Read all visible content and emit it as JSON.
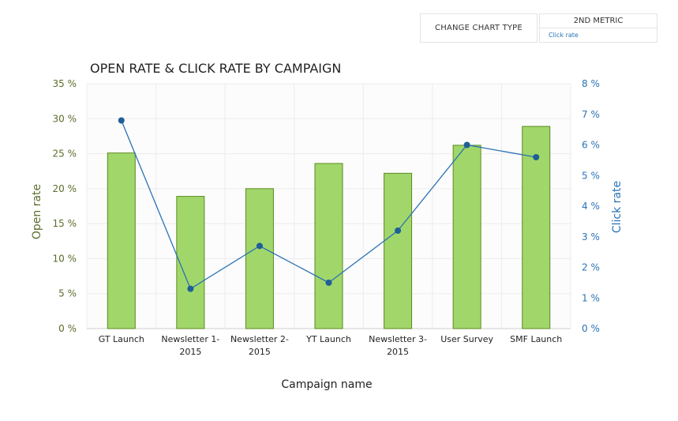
{
  "controls": {
    "change_chart_type_label": "CHANGE CHART TYPE",
    "second_metric_label": "2ND METRIC",
    "second_metric_value": "Click rate"
  },
  "colors": {
    "bar_fill": "#a1d76a",
    "bar_stroke": "#5c8a1e",
    "line": "#2a72b5",
    "point": "#1f5f96",
    "left_axis_text": "#5a6d2a",
    "right_axis_text": "#2a72b5"
  },
  "chart_data": {
    "type": "bar",
    "title": "OPEN RATE & CLICK RATE BY CAMPAIGN",
    "xlabel": "Campaign name",
    "ylabel": "Open rate",
    "y2label": "Click rate",
    "categories": [
      [
        "GT Launch"
      ],
      [
        "Newsletter 1-",
        "2015"
      ],
      [
        "Newsletter 2-",
        "2015"
      ],
      [
        "YT Launch"
      ],
      [
        "Newsletter 3-",
        "2015"
      ],
      [
        "User Survey"
      ],
      [
        "SMF Launch"
      ]
    ],
    "ylim": [
      0,
      35
    ],
    "y_ticks": [
      "0 %",
      "5 %",
      "10 %",
      "15 %",
      "20 %",
      "25 %",
      "30 %",
      "35 %"
    ],
    "y2lim": [
      0,
      8
    ],
    "y2_ticks": [
      "0 %",
      "1 %",
      "2 %",
      "3 %",
      "4 %",
      "5 %",
      "6 %",
      "7 %",
      "8 %"
    ],
    "grid": true,
    "series": [
      {
        "name": "Open rate",
        "type": "bar",
        "axis": "left",
        "values": [
          25.1,
          18.9,
          20.0,
          23.6,
          22.2,
          26.2,
          28.9
        ]
      },
      {
        "name": "Click rate",
        "type": "line",
        "axis": "right",
        "values": [
          6.8,
          1.3,
          2.7,
          1.5,
          3.2,
          6.0,
          5.6
        ]
      }
    ]
  }
}
